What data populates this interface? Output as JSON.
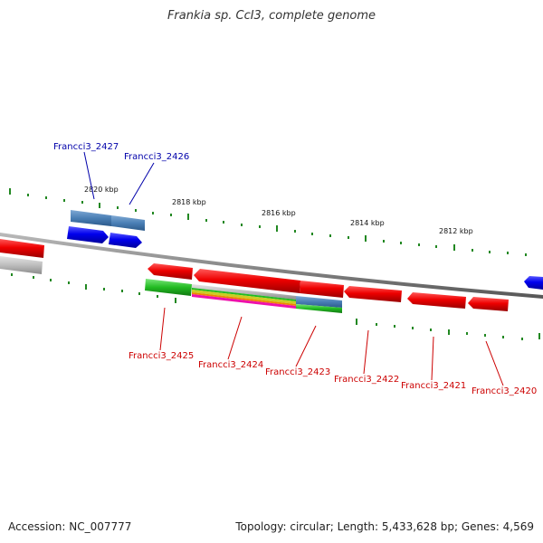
{
  "title": "Frankia sp. CcI3, complete genome",
  "footer": {
    "accession": "Accession: NC_007777",
    "summary": "Topology: circular; Length: 5,433,628 bp; Genes: 4,569"
  },
  "scale_ticks": [
    {
      "label": "2820 kbp"
    },
    {
      "label": "2818 kbp"
    },
    {
      "label": "2816 kbp"
    },
    {
      "label": "2814 kbp"
    },
    {
      "label": "2812 kbp"
    }
  ],
  "gene_labels": [
    {
      "label": "Francci3_2427",
      "color": "#0000aa"
    },
    {
      "label": "Francci3_2426",
      "color": "#0000aa"
    },
    {
      "label": "Francci3_2425",
      "color": "#cc0000"
    },
    {
      "label": "Francci3_2424",
      "color": "#cc0000"
    },
    {
      "label": "Francci3_2423",
      "color": "#cc0000"
    },
    {
      "label": "Francci3_2422",
      "color": "#cc0000"
    },
    {
      "label": "Francci3_2421",
      "color": "#cc0000"
    },
    {
      "label": "Francci3_2420",
      "color": "#cc0000"
    }
  ],
  "colors": {
    "forward_gene": "#0000ee",
    "reverse_gene": "#ee0000",
    "backbone": "#888888",
    "ticks": "#228822"
  }
}
